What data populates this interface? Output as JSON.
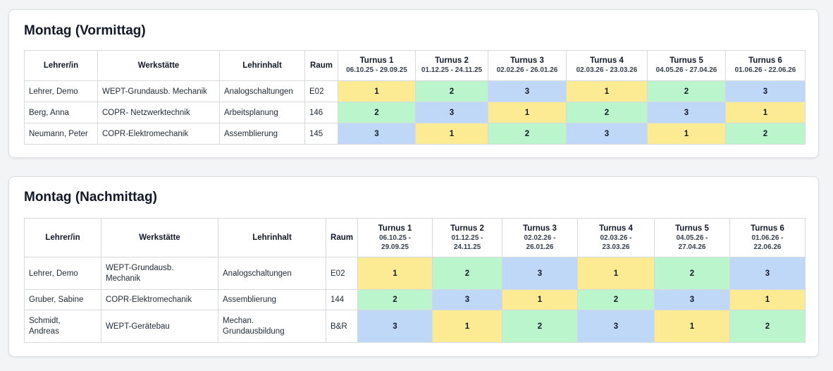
{
  "colors": {
    "c1": "#fdeb93",
    "c2": "#bbf5cc",
    "c3": "#c0d8f8"
  },
  "headers": {
    "teacher": "Lehrer/in",
    "workshop": "Werkstätte",
    "content": "Lehrinhalt",
    "room": "Raum"
  },
  "sections": [
    {
      "title": "Montag (Vormittag)",
      "turns": [
        {
          "label": "Turnus 1",
          "dates": "06.10.25 - 29.09.25"
        },
        {
          "label": "Turnus 2",
          "dates": "01.12.25 - 24.11.25"
        },
        {
          "label": "Turnus 3",
          "dates": "02.02.26 - 26.01.26"
        },
        {
          "label": "Turnus 4",
          "dates": "02.03.26 - 23.03.26"
        },
        {
          "label": "Turnus 5",
          "dates": "04.05.26 - 27.04.26"
        },
        {
          "label": "Turnus 6",
          "dates": "01.06.26 - 22.06.26"
        }
      ],
      "rows": [
        {
          "teacher": "Lehrer, Demo",
          "workshop": "WEPT-Grundausb. Mechanik",
          "content": "Analogschaltungen",
          "room": "E02",
          "values": [
            "1",
            "2",
            "3",
            "1",
            "2",
            "3"
          ]
        },
        {
          "teacher": "Berg, Anna",
          "workshop": "COPR- Netzwerktechnik",
          "content": "Arbeitsplanung",
          "room": "146",
          "values": [
            "2",
            "3",
            "1",
            "2",
            "3",
            "1"
          ]
        },
        {
          "teacher": "Neumann, Peter",
          "workshop": "COPR-Elektromechanik",
          "content": "Assemblierung",
          "room": "145",
          "values": [
            "3",
            "1",
            "2",
            "3",
            "1",
            "2"
          ]
        }
      ]
    },
    {
      "title": "Montag (Nachmittag)",
      "turns": [
        {
          "label": "Turnus 1",
          "dates_a": "06.10.25 -",
          "dates_b": "29.09.25"
        },
        {
          "label": "Turnus 2",
          "dates_a": "01.12.25 -",
          "dates_b": "24.11.25"
        },
        {
          "label": "Turnus 3",
          "dates_a": "02.02.26 -",
          "dates_b": "26.01.26"
        },
        {
          "label": "Turnus 4",
          "dates_a": "02.03.26 -",
          "dates_b": "23.03.26"
        },
        {
          "label": "Turnus 5",
          "dates_a": "04.05.26 -",
          "dates_b": "27.04.26"
        },
        {
          "label": "Turnus 6",
          "dates_a": "01.06.26 -",
          "dates_b": "22.06.26"
        }
      ],
      "rows": [
        {
          "teacher": "Lehrer, Demo",
          "workshop_a": "WEPT-Grundausb.",
          "workshop_b": "Mechanik",
          "content": "Analogschaltungen",
          "room": "E02",
          "values": [
            "1",
            "2",
            "3",
            "1",
            "2",
            "3"
          ]
        },
        {
          "teacher": "Gruber, Sabine",
          "workshop": "COPR-Elektromechanik",
          "content": "Assemblierung",
          "room": "144",
          "values": [
            "2",
            "3",
            "1",
            "2",
            "3",
            "1"
          ]
        },
        {
          "teacher_a": "Schmidt,",
          "teacher_b": "Andreas",
          "workshop": "WEPT-Gerätebau",
          "content_a": "Mechan.",
          "content_b": "Grundausbildung",
          "room": "B&R",
          "values": [
            "3",
            "1",
            "2",
            "3",
            "1",
            "2"
          ]
        }
      ]
    }
  ]
}
